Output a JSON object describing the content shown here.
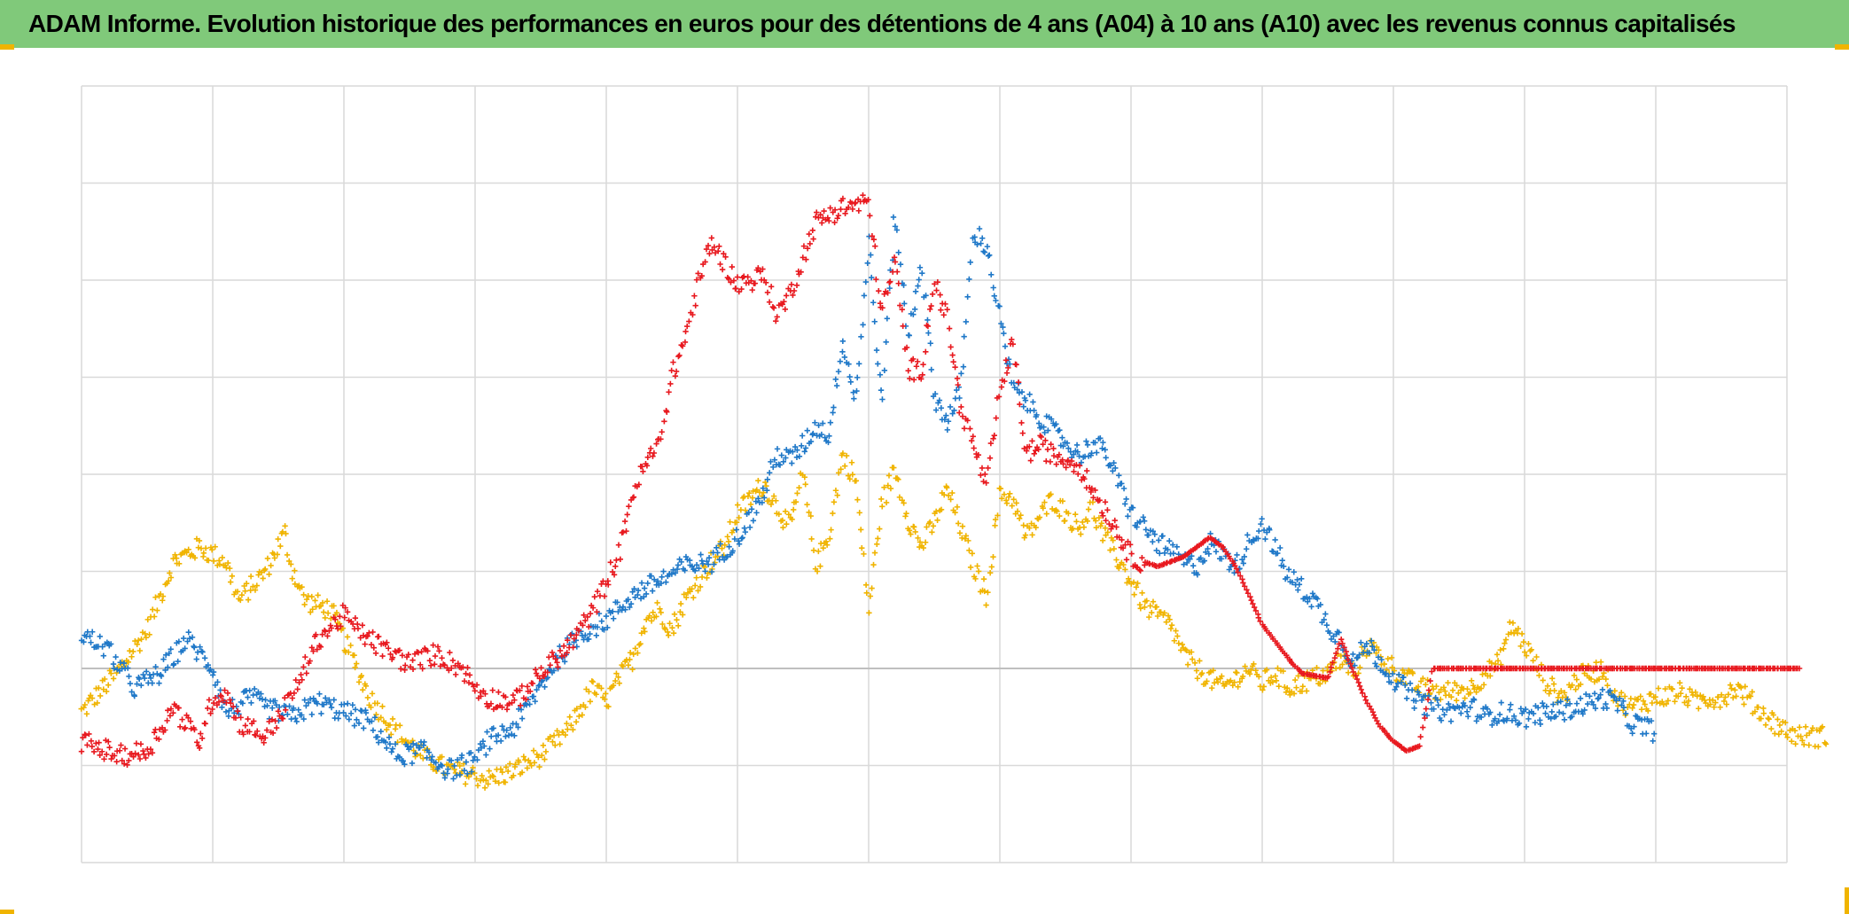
{
  "title": "ADAM Informe. Evolution historique des performances en euros pour des détentions de 4 ans (A04) à 10 ans (A10) avec les revenus connus capitalisés",
  "colors": {
    "title_bg": "#80c97a",
    "grid": "#d9d9d9",
    "baseline": "#bfbfbf",
    "accent_corner": "#f0b400"
  },
  "chart_data": {
    "type": "scatter",
    "title": "ADAM Informe. Evolution historique des performances en euros pour des détentions de 4 ans (A04) à 10 ans (A10) avec les revenus connus capitalisés",
    "xlabel": "",
    "ylabel": "",
    "xlim": [
      0,
      13
    ],
    "ylim": [
      -2,
      6
    ],
    "grid": true,
    "x_grid_step": 1,
    "y_grid_step": 1,
    "baseline_y": 0,
    "legend": "none",
    "marker": "cross",
    "series": [
      {
        "color": "#f0b400",
        "x": [
          0,
          0.1,
          0.3,
          0.5,
          0.7,
          0.9,
          1.1,
          1.2,
          1.4,
          1.55,
          1.6,
          1.7,
          1.9,
          2.0,
          2.2,
          2.4,
          2.6,
          2.8,
          3.0,
          3.1,
          3.3,
          3.5,
          3.7,
          3.9,
          4.0,
          4.1,
          4.2,
          4.3,
          4.4,
          4.5,
          4.6,
          4.8,
          4.9,
          5.0,
          5.2,
          5.4,
          5.5,
          5.6,
          5.7,
          5.8,
          5.9,
          6.0,
          6.1,
          6.2,
          6.3,
          6.4,
          6.5,
          6.6,
          6.7,
          6.8,
          6.9,
          7.0,
          7.1,
          7.2,
          7.4,
          7.6,
          7.7,
          7.8,
          8.0,
          8.1,
          8.2,
          8.3,
          8.4,
          8.5,
          8.6,
          8.7,
          8.8,
          8.9,
          9.0,
          9.1,
          9.2,
          9.4,
          9.5,
          9.6,
          9.7,
          9.8,
          10.0,
          10.2,
          10.4,
          10.6,
          10.7,
          10.8,
          10.9,
          11.0,
          11.1,
          11.2,
          11.3,
          11.4,
          11.6,
          11.7,
          11.8,
          12.0,
          12.2,
          12.3,
          12.4,
          12.5,
          12.6,
          12.7,
          12.8,
          13.0,
          13.1,
          13.3
        ],
        "y": [
          -0.45,
          -0.3,
          0.0,
          0.4,
          1.1,
          1.25,
          1.1,
          0.7,
          1.0,
          1.4,
          1.05,
          0.7,
          0.6,
          0.3,
          -0.3,
          -0.65,
          -0.9,
          -1.05,
          -1.1,
          -1.15,
          -1.05,
          -0.9,
          -0.65,
          -0.2,
          -0.35,
          -0.1,
          0.1,
          0.5,
          0.6,
          0.4,
          0.7,
          1.1,
          1.25,
          1.6,
          1.9,
          1.45,
          2.0,
          1.05,
          1.4,
          2.2,
          1.95,
          0.6,
          1.7,
          2.05,
          1.55,
          1.25,
          1.5,
          1.85,
          1.45,
          1.05,
          0.75,
          1.8,
          1.75,
          1.35,
          1.75,
          1.45,
          1.65,
          1.35,
          0.9,
          0.65,
          0.55,
          0.45,
          0.15,
          0.0,
          -0.1,
          -0.2,
          -0.1,
          0.0,
          -0.15,
          -0.05,
          -0.2,
          -0.1,
          -0.05,
          0.1,
          -0.05,
          0.25,
          0.0,
          -0.2,
          -0.25,
          -0.2,
          -0.05,
          0.05,
          0.45,
          0.25,
          0.0,
          -0.2,
          -0.3,
          -0.1,
          0.0,
          -0.3,
          -0.4,
          -0.3,
          -0.25,
          -0.35,
          -0.3,
          -0.3,
          -0.2,
          -0.3,
          -0.45,
          -0.65,
          -0.7,
          -0.7
        ]
      },
      {
        "color": "#1f78c8",
        "x": [
          0,
          0.2,
          0.4,
          0.6,
          0.8,
          1.0,
          1.1,
          1.3,
          1.4,
          1.6,
          1.8,
          2.0,
          2.2,
          2.4,
          2.6,
          2.8,
          3.0,
          3.1,
          3.3,
          3.4,
          3.6,
          3.8,
          4.0,
          4.2,
          4.4,
          4.6,
          4.8,
          5.0,
          5.1,
          5.2,
          5.3,
          5.4,
          5.5,
          5.6,
          5.7,
          5.8,
          5.9,
          6.0,
          6.1,
          6.2,
          6.3,
          6.4,
          6.5,
          6.6,
          6.7,
          6.8,
          6.9,
          7.0,
          7.1,
          7.2,
          7.4,
          7.6,
          7.7,
          7.8,
          8.0,
          8.2,
          8.4,
          8.5,
          8.6,
          8.8,
          8.9,
          9.0,
          9.2,
          9.4,
          9.5,
          9.6,
          9.7,
          9.8,
          10.0,
          10.2,
          10.4,
          10.6,
          10.7,
          10.8,
          11.0,
          11.2,
          11.4,
          11.6,
          11.7,
          11.8,
          11.9,
          12.0
        ],
        "y": [
          0.35,
          0.2,
          -0.2,
          -0.05,
          0.3,
          0.0,
          -0.45,
          -0.3,
          -0.4,
          -0.5,
          -0.35,
          -0.45,
          -0.55,
          -0.9,
          -0.85,
          -1.05,
          -0.95,
          -0.75,
          -0.6,
          -0.4,
          0.05,
          0.35,
          0.5,
          0.75,
          0.9,
          1.05,
          1.1,
          1.35,
          1.55,
          1.8,
          2.2,
          2.15,
          2.3,
          2.5,
          2.4,
          3.4,
          2.75,
          4.4,
          2.7,
          4.7,
          3.4,
          4.2,
          2.8,
          2.55,
          2.85,
          4.5,
          4.35,
          3.6,
          2.9,
          2.75,
          2.45,
          2.2,
          2.3,
          2.25,
          1.6,
          1.3,
          1.1,
          1.05,
          1.3,
          1.05,
          1.3,
          1.5,
          0.95,
          0.7,
          0.45,
          0.3,
          0.05,
          0.25,
          -0.1,
          -0.35,
          -0.45,
          -0.4,
          -0.5,
          -0.45,
          -0.5,
          -0.45,
          -0.4,
          -0.3,
          -0.35,
          -0.55,
          -0.6,
          -0.65
        ]
      },
      {
        "color": "#e8191f",
        "x": [
          0,
          0.1,
          0.3,
          0.5,
          0.7,
          0.9,
          1.0,
          1.1,
          1.2,
          1.4,
          1.6,
          1.8,
          2.0,
          2.1,
          2.3,
          2.5,
          2.7,
          2.9,
          3.0,
          3.1,
          3.3,
          3.5,
          3.7,
          3.9,
          4.0,
          4.1,
          4.2,
          4.3,
          4.4,
          4.5,
          4.6,
          4.7,
          4.8,
          5.0,
          5.2,
          5.3,
          5.4,
          5.5,
          5.6,
          5.8,
          6.0,
          6.1,
          6.2,
          6.3,
          6.4,
          6.5,
          6.6,
          6.7,
          6.8,
          6.9,
          7.0,
          7.1,
          7.2,
          7.3,
          7.4,
          7.6,
          7.7,
          7.8,
          8.0,
          8.2,
          8.4,
          8.6,
          8.7,
          8.8,
          9.0,
          9.2,
          9.3,
          9.5,
          9.6,
          9.7,
          9.8,
          9.9,
          10.0,
          10.1,
          10.2,
          10.3,
          10.5,
          10.7,
          10.9,
          11.1,
          11.3,
          11.5,
          11.7,
          11.9,
          12.1,
          12.3,
          12.5,
          12.7,
          12.9,
          13.1
        ],
        "y": [
          -0.75,
          -0.8,
          -0.9,
          -0.85,
          -0.4,
          -0.75,
          -0.3,
          -0.25,
          -0.55,
          -0.7,
          -0.3,
          0.3,
          0.55,
          0.4,
          0.2,
          0.05,
          0.15,
          0.0,
          -0.2,
          -0.3,
          -0.35,
          -0.05,
          0.2,
          0.6,
          0.9,
          1.2,
          1.8,
          2.1,
          2.3,
          3.0,
          3.4,
          3.95,
          4.4,
          3.95,
          4.05,
          3.65,
          3.85,
          4.25,
          4.6,
          4.75,
          4.8,
          3.65,
          4.2,
          3.1,
          3.05,
          4.0,
          3.6,
          2.7,
          2.3,
          1.85,
          2.85,
          3.35,
          2.2,
          2.3,
          2.2,
          2.1,
          1.85,
          1.65,
          1.15,
          1.05,
          1.15,
          1.35,
          1.25,
          1.05,
          0.45,
          0.1,
          -0.05,
          -0.1,
          0.3,
          -0.05,
          -0.35,
          -0.6,
          -0.75,
          -0.85,
          -0.8,
          0.0,
          0.0,
          0.0,
          0.0,
          0.0,
          0.0,
          0.0,
          0.0,
          0.0,
          0.0,
          0.0,
          0.0,
          0.0,
          0.0,
          0.0
        ]
      }
    ]
  }
}
